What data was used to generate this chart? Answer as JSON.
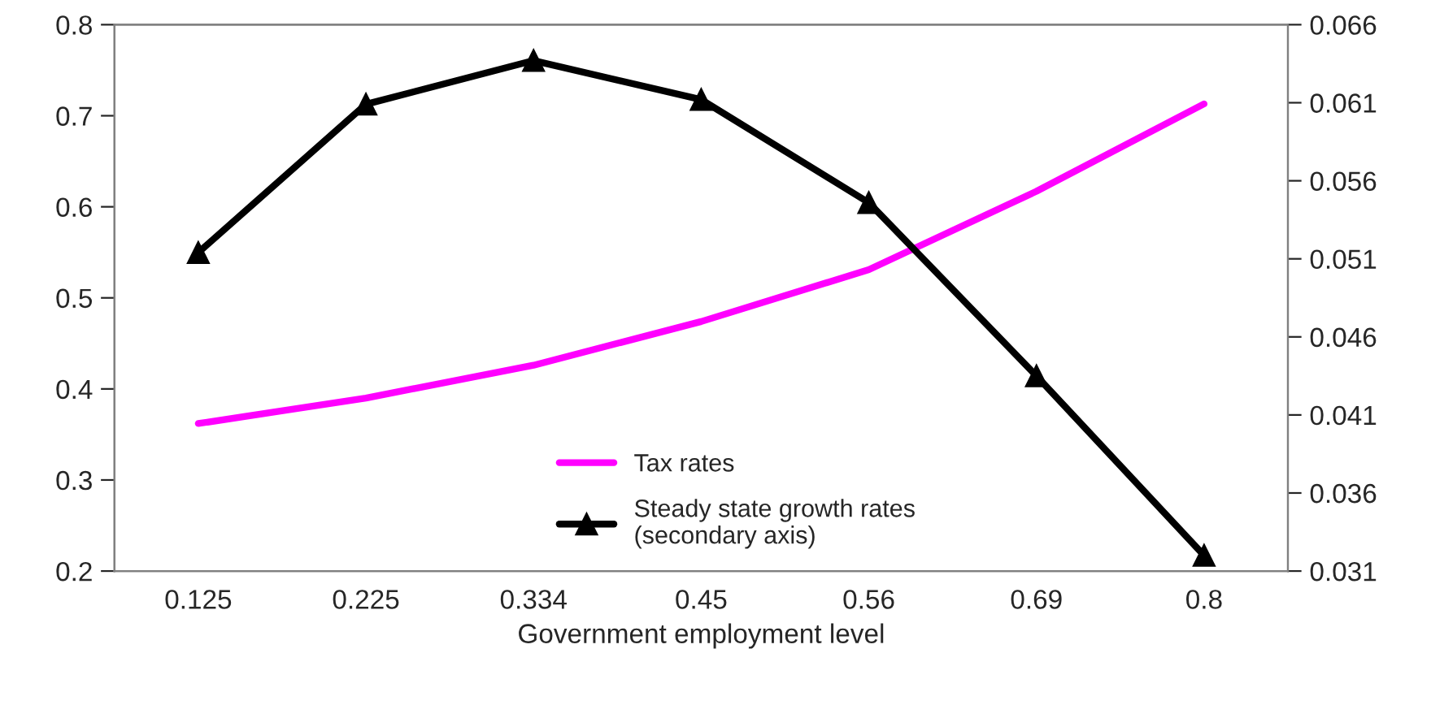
{
  "chart_data": {
    "type": "line",
    "xlabel": "Government employment level",
    "categories": [
      "0.125",
      "0.225",
      "0.334",
      "0.45",
      "0.56",
      "0.69",
      "0.8"
    ],
    "series": [
      {
        "name": "Tax rates",
        "color": "#ff00ff",
        "values": [
          0.362,
          0.39,
          0.426,
          0.474,
          0.531,
          0.617,
          0.713
        ],
        "marker": "none"
      },
      {
        "name": "Steady state growth rates\n(secondary axis)",
        "color": "#000000",
        "values": [
          0.0514,
          0.0609,
          0.0637,
          0.0612,
          0.0546,
          0.0435,
          0.032
        ],
        "axis": "y2",
        "marker": "triangle"
      }
    ],
    "ylim": [
      0.2,
      0.8
    ],
    "yticks": [
      0.2,
      0.3,
      0.4,
      0.5,
      0.6,
      0.7,
      0.8
    ],
    "y2lim": [
      0.031,
      0.066
    ],
    "y2ticks": [
      0.031,
      0.036,
      0.041,
      0.046,
      0.051,
      0.056,
      0.061,
      0.066
    ],
    "grid": false,
    "legend": "bottom"
  }
}
